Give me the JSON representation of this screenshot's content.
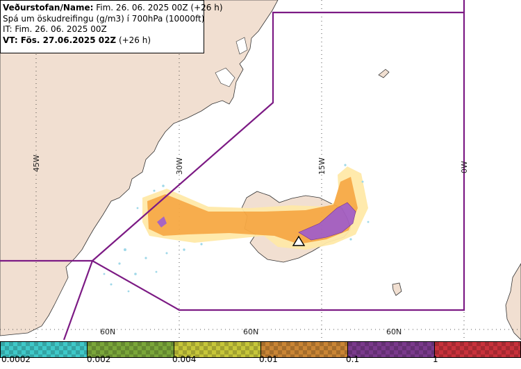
{
  "info": {
    "org_label": "Veðurstofan/Name:",
    "org_value": " Fim. 26. 06. 2025 00Z (+26 h)",
    "title": "Spá um öskudreifingu (g/m3) í 700hPa (10000ft)",
    "it": "IT: Fim. 26. 06. 2025 00Z",
    "vt_label": "VT: Fös. 27.06.2025 02Z",
    "vt_suffix": " (+26 h)"
  },
  "grid": {
    "lon_labels": [
      "45W",
      "30W",
      "15W",
      "0W"
    ],
    "lat_labels": [
      "60N",
      "60N",
      "60N"
    ]
  },
  "legend": {
    "ticks": [
      "0.0002",
      "0.002",
      "0.004",
      "0.01",
      "0.1",
      "1"
    ],
    "colors": [
      "#3fc8c8",
      "#7aa63a",
      "#c6c63a",
      "#c98535",
      "#7a3a8c",
      "#c8323c"
    ]
  },
  "colors": {
    "land": "#f1dfd1",
    "sea": "#ffffff",
    "boundary": "#7c1a84",
    "ash_low": "#ffd27a",
    "ash_mid": "#f7a944",
    "ash_high": "#a35dc0"
  }
}
